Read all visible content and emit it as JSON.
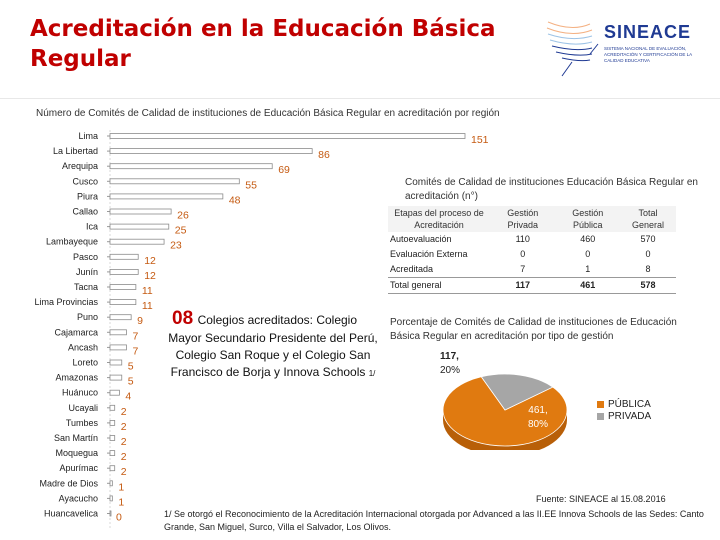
{
  "page": {
    "title": "Acreditación en la Educación Básica Regular",
    "subtitle": "Número de Comités de Calidad de instituciones de Educación Básica Regular en acreditación por región"
  },
  "logo": {
    "name": "SINEACE",
    "tagline": "Sistema Nacional de Evaluación, Acreditación y Certificación de la Calidad Educativa",
    "color": "#1f3a93"
  },
  "colors": {
    "title": "#c00000",
    "value_labels": "#c55a11",
    "bar_line": "#8c8c8c",
    "publica": "#e07a10",
    "privada": "#a6a6a6"
  },
  "chart_data": [
    {
      "type": "bar",
      "orientation": "horizontal",
      "categories": [
        "Lima",
        "La Libertad",
        "Arequipa",
        "Cusco",
        "Piura",
        "Callao",
        "Ica",
        "Lambayeque",
        "Pasco",
        "Junín",
        "Tacna",
        "Lima Provincias",
        "Puno",
        "Cajamarca",
        "Ancash",
        "Loreto",
        "Amazonas",
        "Huánuco",
        "Ucayali",
        "Tumbes",
        "San Martín",
        "Moquegua",
        "Apurímac",
        "Madre de Dios",
        "Ayacucho",
        "Huancavelica"
      ],
      "values": [
        151,
        86,
        69,
        55,
        48,
        26,
        25,
        23,
        12,
        12,
        11,
        11,
        9,
        7,
        7,
        5,
        5,
        4,
        2,
        2,
        2,
        2,
        2,
        1,
        1,
        0
      ],
      "title": "Número de Comités de Calidad de instituciones de Educación Básica Regular en acreditación por región",
      "xlim": [
        0,
        151
      ]
    },
    {
      "type": "pie",
      "title": "Porcentaje de Comités de Calidad de instituciones de Educación Básica Regular en acreditación por tipo de gestión",
      "labels": [
        "PÚBLICA",
        "PRIVADA"
      ],
      "values": [
        461,
        117
      ],
      "percent_labels": [
        "80%",
        "20%"
      ],
      "value_labels": [
        "461,",
        "117,"
      ],
      "legend_position": "right"
    }
  ],
  "note": {
    "number": "08",
    "first_line": "Colegios acreditados: Colegio",
    "rest": "Mayor Secundario Presidente del Perú, Colegio San Roque y el Colegio San Francisco de Borja y Innova Schools",
    "ref": "1/"
  },
  "table": {
    "title": "Comités de Calidad de instituciones Educación Básica Regular en acreditación (n°)",
    "headers": [
      "Etapas del proceso de Acreditación",
      "Gestión Privada",
      "Gestión Pública",
      "Total General"
    ],
    "rows": [
      [
        "Autoevaluación",
        "110",
        "460",
        "570"
      ],
      [
        "Evaluación Externa",
        "0",
        "0",
        "0"
      ],
      [
        "Acreditada",
        "7",
        "1",
        "8"
      ]
    ],
    "total": [
      "Total general",
      "117",
      "461",
      "578"
    ]
  },
  "footer": {
    "source": "Fuente: SINEACE al 15.08.2016",
    "footnote": "1/ Se otorgó el Reconocimiento de la Acreditación Internacional otorgada por Advanced a las II.EE Innova Schools de las Sedes: Canto Grande, San Miguel, Surco, Villa el Salvador, Los Olivos."
  }
}
